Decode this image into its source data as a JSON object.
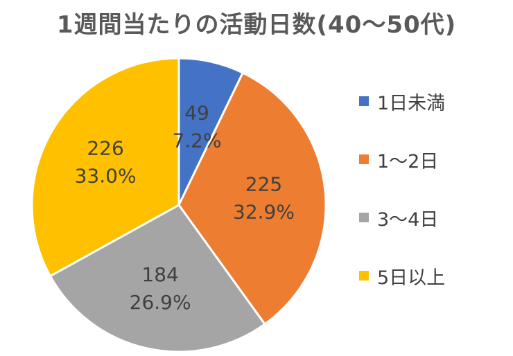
{
  "chart_data": {
    "type": "pie",
    "title": "1週間当たりの活動日数(40～50代)",
    "slices": [
      {
        "label": "1日未満",
        "value": 49,
        "percent_label": "7.2%",
        "color": "#4472C4"
      },
      {
        "label": "1～2日",
        "value": 225,
        "percent_label": "32.9%",
        "color": "#ED7D31"
      },
      {
        "label": "3～4日",
        "value": 184,
        "percent_label": "26.9%",
        "color": "#A5A5A5"
      },
      {
        "label": "5日以上",
        "value": 226,
        "percent_label": "33.0%",
        "color": "#FFC000"
      }
    ],
    "legend_position": "right",
    "start_angle": "12 o'clock, clockwise"
  }
}
